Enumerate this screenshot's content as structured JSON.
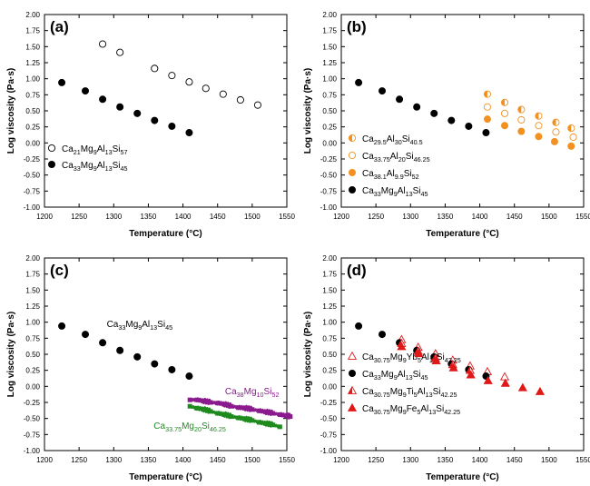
{
  "colors": {
    "black": "#000000",
    "orange": "#f29122",
    "purple": "#8a1a8e",
    "green": "#1f8b1f",
    "red": "#e01818"
  },
  "chart_data": [
    {
      "panel": "(a)",
      "type": "scatter",
      "xlabel": "Temperature (°C)",
      "ylabel": "Log viscosity (Pa·s)",
      "xlim": [
        1200,
        1550
      ],
      "ylim": [
        -1.0,
        2.0
      ],
      "xticks": [
        "1200",
        "1250",
        "1300",
        "1350",
        "1400",
        "1450",
        "1500",
        "1550"
      ],
      "yticks": [
        "-1.00",
        "-0.75",
        "-0.50",
        "-0.25",
        "0.00",
        "0.25",
        "0.50",
        "0.75",
        "1.00",
        "1.25",
        "1.50",
        "1.75",
        "2.00"
      ],
      "legend_position": "bottom-left",
      "series": [
        {
          "name": "Ca21Mg9Al13Si57",
          "label_parts": [
            [
              "Ca",
              ""
            ],
            [
              "21",
              "sub"
            ],
            [
              "Mg",
              ""
            ],
            [
              "9",
              "sub"
            ],
            [
              "Al",
              ""
            ],
            [
              "13",
              "sub"
            ],
            [
              "Si",
              ""
            ],
            [
              "57",
              "sub"
            ]
          ],
          "marker": "open-circle",
          "color": "#000000",
          "x": [
            1284,
            1309,
            1359,
            1384,
            1409,
            1433,
            1458,
            1483,
            1508
          ],
          "y": [
            1.54,
            1.41,
            1.16,
            1.05,
            0.95,
            0.85,
            0.76,
            0.67,
            0.59
          ]
        },
        {
          "name": "Ca33Mg9Al13Si45",
          "label_parts": [
            [
              "Ca",
              ""
            ],
            [
              "33",
              "sub"
            ],
            [
              "Mg",
              ""
            ],
            [
              "9",
              "sub"
            ],
            [
              "Al",
              ""
            ],
            [
              "13",
              "sub"
            ],
            [
              "Si",
              ""
            ],
            [
              "45",
              "sub"
            ]
          ],
          "marker": "filled-circle",
          "color": "#000000",
          "x": [
            1225,
            1259,
            1284,
            1309,
            1334,
            1359,
            1384,
            1409
          ],
          "y": [
            0.94,
            0.81,
            0.68,
            0.56,
            0.46,
            0.35,
            0.26,
            0.16
          ]
        }
      ]
    },
    {
      "panel": "(b)",
      "type": "scatter",
      "xlabel": "Temperature (°C)",
      "ylabel": "Log viscosity (Pa·s)",
      "xlim": [
        1200,
        1550
      ],
      "ylim": [
        -1.0,
        2.0
      ],
      "xticks": [
        "1200",
        "1250",
        "1300",
        "1350",
        "1400",
        "1450",
        "1500",
        "1550"
      ],
      "yticks": [
        "-1.00",
        "-0.75",
        "-0.50",
        "-0.25",
        "0.00",
        "0.25",
        "0.50",
        "0.75",
        "1.00",
        "1.25",
        "1.50",
        "1.75",
        "2.00"
      ],
      "legend_position": "bottom-left",
      "series": [
        {
          "name": "Ca29.5Al30Si40.5",
          "label_parts": [
            [
              "Ca",
              ""
            ],
            [
              "29.5",
              "sub"
            ],
            [
              "Al",
              ""
            ],
            [
              "30",
              "sub"
            ],
            [
              "Si",
              ""
            ],
            [
              "40.5",
              "sub"
            ]
          ],
          "marker": "half-filled-circle",
          "color": "#f29122",
          "x": [
            1411,
            1436,
            1460,
            1485,
            1510,
            1532
          ],
          "y": [
            0.76,
            0.63,
            0.52,
            0.42,
            0.32,
            0.23
          ]
        },
        {
          "name": "Ca33.75Al20Si46.25",
          "label_parts": [
            [
              "Ca",
              ""
            ],
            [
              "33.75",
              "sub"
            ],
            [
              "Al",
              ""
            ],
            [
              "20",
              "sub"
            ],
            [
              "Si",
              ""
            ],
            [
              "46.25",
              "sub"
            ]
          ],
          "marker": "open-circle",
          "color": "#f29122",
          "x": [
            1411,
            1436,
            1460,
            1485,
            1510,
            1535
          ],
          "y": [
            0.56,
            0.46,
            0.36,
            0.27,
            0.17,
            0.09
          ]
        },
        {
          "name": "Ca38.1Al9.9Si52",
          "label_parts": [
            [
              "Ca",
              ""
            ],
            [
              "38.1",
              "sub"
            ],
            [
              "Al",
              ""
            ],
            [
              "9.9",
              "sub"
            ],
            [
              "Si",
              ""
            ],
            [
              "52",
              "sub"
            ]
          ],
          "marker": "filled-circle",
          "color": "#f29122",
          "x": [
            1411,
            1436,
            1460,
            1485,
            1508,
            1532
          ],
          "y": [
            0.37,
            0.27,
            0.18,
            0.1,
            0.02,
            -0.05
          ]
        },
        {
          "name": "Ca33Mg9Al13Si45",
          "label_parts": [
            [
              "Ca",
              ""
            ],
            [
              "33",
              "sub"
            ],
            [
              "Mg",
              ""
            ],
            [
              "9",
              "sub"
            ],
            [
              "Al",
              ""
            ],
            [
              "13",
              "sub"
            ],
            [
              "Si",
              ""
            ],
            [
              "45",
              "sub"
            ]
          ],
          "marker": "filled-circle",
          "color": "#000000",
          "x": [
            1225,
            1259,
            1284,
            1309,
            1334,
            1359,
            1384,
            1409
          ],
          "y": [
            0.94,
            0.81,
            0.68,
            0.56,
            0.46,
            0.35,
            0.26,
            0.16
          ]
        }
      ]
    },
    {
      "panel": "(c)",
      "type": "scatter",
      "xlabel": "Temperature (°C)",
      "ylabel": "Log viscosity (Pa·s)",
      "xlim": [
        1200,
        1550
      ],
      "ylim": [
        -1.0,
        2.0
      ],
      "xticks": [
        "1200",
        "1250",
        "1300",
        "1350",
        "1400",
        "1450",
        "1500",
        "1550"
      ],
      "yticks": [
        "-1.00",
        "-0.75",
        "-0.50",
        "-0.25",
        "0.00",
        "0.25",
        "0.50",
        "0.75",
        "1.00",
        "1.25",
        "1.50",
        "1.75",
        "2.00"
      ],
      "legend_position": "inline labels",
      "series": [
        {
          "name": "Ca33Mg9Al13Si45",
          "label_parts": [
            [
              "Ca",
              ""
            ],
            [
              "33",
              "sub"
            ],
            [
              "Mg",
              ""
            ],
            [
              "9",
              "sub"
            ],
            [
              "Al",
              ""
            ],
            [
              "13",
              "sub"
            ],
            [
              "Si",
              ""
            ],
            [
              "45",
              "sub"
            ]
          ],
          "label_at": [
            1303,
            0.97
          ],
          "marker": "filled-circle",
          "color": "#000000",
          "x": [
            1225,
            1259,
            1284,
            1309,
            1334,
            1359,
            1384,
            1409
          ],
          "y": [
            0.94,
            0.81,
            0.68,
            0.56,
            0.46,
            0.35,
            0.26,
            0.16
          ]
        },
        {
          "name": "Ca38Mg10Si52",
          "label_parts": [
            [
              "Ca",
              ""
            ],
            [
              "38",
              "sub"
            ],
            [
              "Mg",
              ""
            ],
            [
              "10",
              "sub"
            ],
            [
              "Si",
              ""
            ],
            [
              "52",
              "sub"
            ]
          ],
          "label_at": [
            1500,
            -0.08
          ],
          "marker": "dense-line",
          "color": "#8a1a8e",
          "x": [
            1410,
            1420,
            1430,
            1440,
            1450,
            1460,
            1470,
            1480,
            1490,
            1500,
            1510,
            1520,
            1530,
            1540,
            1550,
            1555
          ],
          "y": [
            -0.21,
            -0.21,
            -0.23,
            -0.25,
            -0.26,
            -0.28,
            -0.31,
            -0.33,
            -0.34,
            -0.36,
            -0.38,
            -0.4,
            -0.42,
            -0.44,
            -0.46,
            -0.47
          ]
        },
        {
          "name": "Ca33.75Mg20Si46.25",
          "label_parts": [
            [
              "Ca",
              ""
            ],
            [
              "33.75",
              "sub"
            ],
            [
              "Mg",
              ""
            ],
            [
              "20",
              "sub"
            ],
            [
              "Si",
              ""
            ],
            [
              "46.25",
              "sub"
            ]
          ],
          "label_at": [
            1397,
            -0.62
          ],
          "marker": "dense-line",
          "color": "#1f8b1f",
          "x": [
            1410,
            1420,
            1430,
            1440,
            1450,
            1460,
            1470,
            1480,
            1490,
            1500,
            1510,
            1520,
            1530,
            1540
          ],
          "y": [
            -0.31,
            -0.34,
            -0.36,
            -0.39,
            -0.42,
            -0.44,
            -0.47,
            -0.49,
            -0.51,
            -0.53,
            -0.56,
            -0.58,
            -0.6,
            -0.63
          ]
        }
      ]
    },
    {
      "panel": "(d)",
      "type": "scatter",
      "xlabel": "Temperature (°C)",
      "ylabel": "Log viscosity (Pa·s)",
      "xlim": [
        1200,
        1550
      ],
      "ylim": [
        -1.0,
        2.0
      ],
      "xticks": [
        "1200",
        "1250",
        "1300",
        "1350",
        "1400",
        "1450",
        "1500",
        "1550"
      ],
      "yticks": [
        "-1.00",
        "-0.75",
        "-0.50",
        "-0.25",
        "0.00",
        "0.25",
        "0.50",
        "0.75",
        "1.00",
        "1.25",
        "1.50",
        "1.75",
        "2.00"
      ],
      "legend_position": "bottom-left",
      "series": [
        {
          "name": "Ca30.75Mg9Yb5Al13Si42.25",
          "label_parts": [
            [
              "Ca",
              ""
            ],
            [
              "30.75",
              "sub"
            ],
            [
              "Mg",
              ""
            ],
            [
              "9",
              "sub"
            ],
            [
              "Yb",
              ""
            ],
            [
              "5",
              "sub"
            ],
            [
              "Al",
              ""
            ],
            [
              "13",
              "sub"
            ],
            [
              "Si",
              ""
            ],
            [
              "42.25",
              "sub"
            ]
          ],
          "marker": "open-triangle",
          "color": "#e01818",
          "x": [
            1287,
            1311,
            1336,
            1361,
            1386,
            1411,
            1436
          ],
          "y": [
            0.73,
            0.61,
            0.51,
            0.41,
            0.32,
            0.23,
            0.15
          ]
        },
        {
          "name": "Ca33Mg9Al13Si45",
          "label_parts": [
            [
              "Ca",
              ""
            ],
            [
              "33",
              "sub"
            ],
            [
              "Mg",
              ""
            ],
            [
              "9",
              "sub"
            ],
            [
              "Al",
              ""
            ],
            [
              "13",
              "sub"
            ],
            [
              "Si",
              ""
            ],
            [
              "45",
              "sub"
            ]
          ],
          "marker": "filled-circle",
          "color": "#000000",
          "x": [
            1225,
            1259,
            1284,
            1309,
            1334,
            1359,
            1384,
            1409
          ],
          "y": [
            0.94,
            0.81,
            0.68,
            0.56,
            0.46,
            0.35,
            0.26,
            0.16
          ]
        },
        {
          "name": "Ca30.75Mg9Ti5Al13Si42.25",
          "label_parts": [
            [
              "Ca",
              ""
            ],
            [
              "30.75",
              "sub"
            ],
            [
              "Mg",
              ""
            ],
            [
              "9",
              "sub"
            ],
            [
              "Ti",
              ""
            ],
            [
              "5",
              "sub"
            ],
            [
              "Al",
              ""
            ],
            [
              "13",
              "sub"
            ],
            [
              "Si",
              ""
            ],
            [
              "42.25",
              "sub"
            ]
          ],
          "marker": "half-triangle",
          "color": "#e01818",
          "x": [
            1287,
            1311,
            1336,
            1361,
            1386
          ],
          "y": [
            0.67,
            0.55,
            0.44,
            0.34,
            0.25
          ]
        },
        {
          "name": "Ca30.75Mg9Fe5Al13Si42.25",
          "label_parts": [
            [
              "Ca",
              ""
            ],
            [
              "30.75",
              "sub"
            ],
            [
              "Mg",
              ""
            ],
            [
              "9",
              "sub"
            ],
            [
              "Fe",
              ""
            ],
            [
              "5",
              "sub"
            ],
            [
              "Al",
              ""
            ],
            [
              "13",
              "sub"
            ],
            [
              "Si",
              ""
            ],
            [
              "42.25",
              "sub"
            ]
          ],
          "marker": "filled-triangle",
          "color": "#e01818",
          "x": [
            1287,
            1312,
            1337,
            1362,
            1387,
            1412,
            1437,
            1462,
            1487
          ],
          "y": [
            0.62,
            0.51,
            0.4,
            0.29,
            0.18,
            0.09,
            0.05,
            -0.02,
            -0.08
          ]
        }
      ]
    }
  ]
}
